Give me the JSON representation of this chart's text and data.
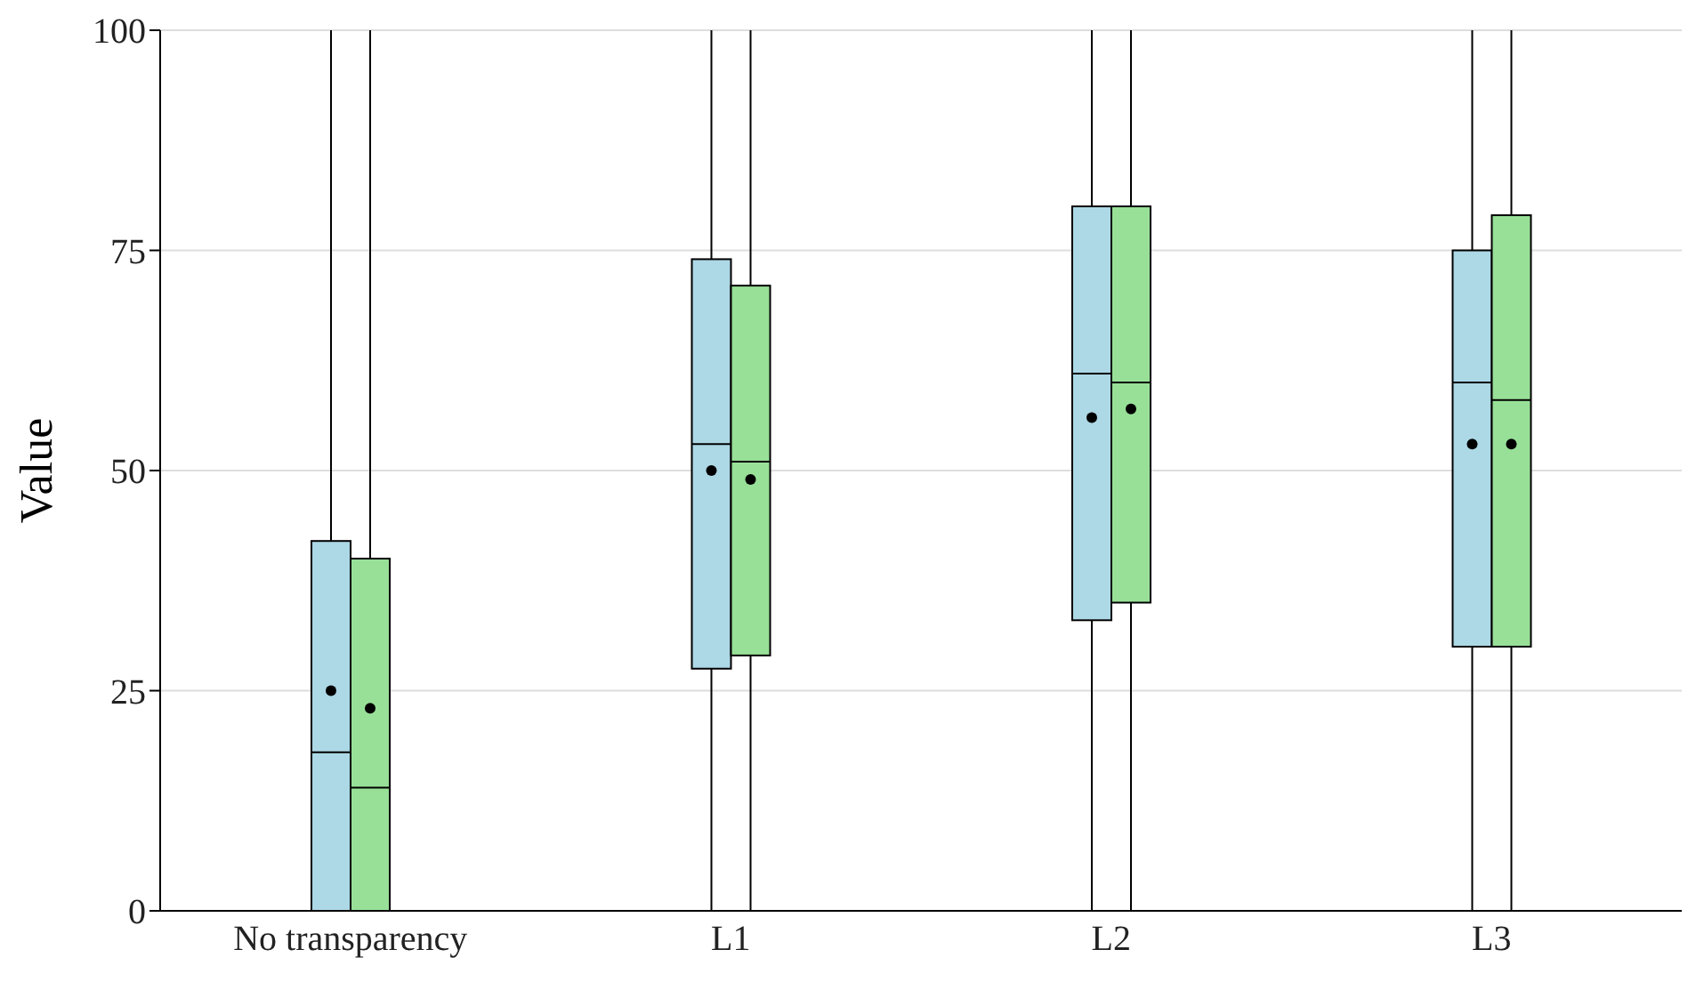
{
  "chart_data": {
    "type": "box",
    "ylabel": "Value",
    "categories": [
      "No transparency",
      "L1",
      "L2",
      "L3"
    ],
    "ylim": [
      0,
      100
    ],
    "yticks": [
      0,
      25,
      50,
      75,
      100
    ],
    "grid": "y",
    "legend": false,
    "series": [
      {
        "color": "#add8e6",
        "boxes": [
          {
            "low": 0,
            "q1": 0,
            "median": 18,
            "q3": 42,
            "high": 100,
            "mean": 25
          },
          {
            "low": 0,
            "q1": 27.5,
            "median": 53,
            "q3": 74,
            "high": 100,
            "mean": 50
          },
          {
            "low": 0,
            "q1": 33,
            "median": 61,
            "q3": 80,
            "high": 100,
            "mean": 56
          },
          {
            "low": 0,
            "q1": 30,
            "median": 60,
            "q3": 75,
            "high": 100,
            "mean": 53
          }
        ]
      },
      {
        "color": "#98e098",
        "boxes": [
          {
            "low": 0,
            "q1": 0,
            "median": 14,
            "q3": 40,
            "high": 100,
            "mean": 23
          },
          {
            "low": 0,
            "q1": 29,
            "median": 51,
            "q3": 71,
            "high": 100,
            "mean": 49
          },
          {
            "low": 0,
            "q1": 35,
            "median": 60,
            "q3": 80,
            "high": 100,
            "mean": 57
          },
          {
            "low": 0,
            "q1": 30,
            "median": 58,
            "q3": 79,
            "high": 100,
            "mean": 53
          }
        ]
      }
    ]
  }
}
